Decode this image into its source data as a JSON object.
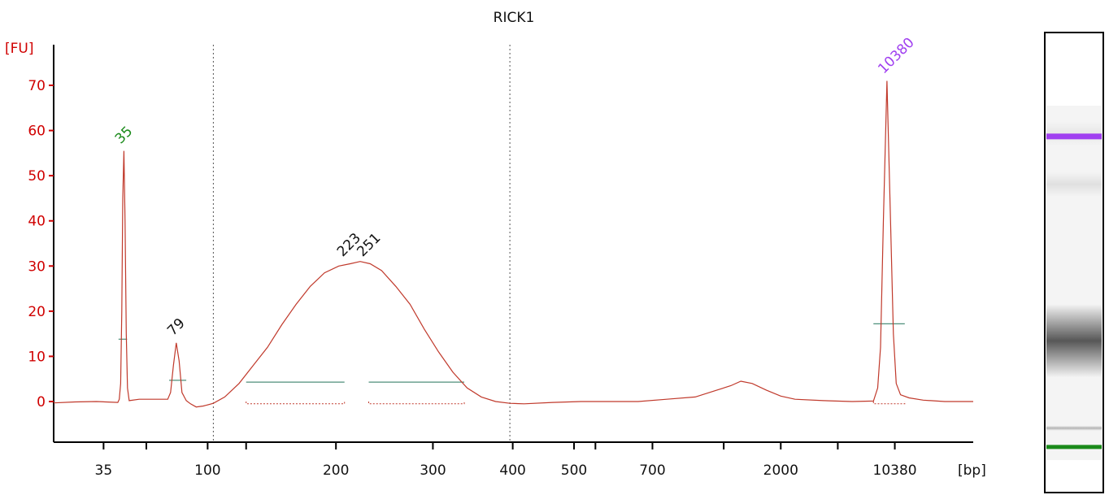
{
  "chart_data": {
    "type": "line",
    "title": "RICK1",
    "ylabel": "[FU]",
    "xlabel": "[bp]",
    "ylim": [
      -9,
      79
    ],
    "yticks": [
      0,
      10,
      20,
      30,
      40,
      50,
      60,
      70
    ],
    "ytick_labels": [
      "0",
      "10",
      "20",
      "30",
      "40",
      "50",
      "60",
      "70"
    ],
    "x_tick_labels": [
      {
        "label": "35",
        "time": 35
      },
      {
        "label": "100",
        "time": 108
      },
      {
        "label": "200",
        "time": 198
      },
      {
        "label": "300",
        "time": 266
      },
      {
        "label": "400",
        "time": 322
      },
      {
        "label": "500",
        "time": 365
      },
      {
        "label": "700",
        "time": 420
      },
      {
        "label": "2000",
        "time": 510
      },
      {
        "label": "10380",
        "time": 590
      }
    ],
    "x_minor_ticks": [
      65,
      135,
      380,
      470,
      550
    ],
    "x_range": [
      0,
      645
    ],
    "grid": false,
    "vertical_markers": [
      112,
      320
    ],
    "colors": {
      "trace": "#c0392b",
      "axis_labels": "#d00000",
      "lower_marker": "#1a8a1a",
      "upper_marker": "#a040f0",
      "region_line": "#4f8f7a"
    },
    "series": [
      {
        "values": [
          [
            0,
            -0.3
          ],
          [
            15,
            -0.1
          ],
          [
            30,
            0.0
          ],
          [
            45,
            -0.2
          ],
          [
            46,
            0.5
          ],
          [
            47,
            4.0
          ],
          [
            47.8,
            20.0
          ],
          [
            48.5,
            45.0
          ],
          [
            49.3,
            55.5
          ],
          [
            50.1,
            40.0
          ],
          [
            50.9,
            15.0
          ],
          [
            51.8,
            3.0
          ],
          [
            53,
            0.2
          ],
          [
            60,
            0.5
          ],
          [
            75,
            0.5
          ],
          [
            80,
            0.5
          ],
          [
            82,
            2.0
          ],
          [
            84,
            8.0
          ],
          [
            86,
            13.0
          ],
          [
            88,
            9.0
          ],
          [
            90,
            2.0
          ],
          [
            93,
            0.2
          ],
          [
            96,
            -0.5
          ],
          [
            100,
            -1.2
          ],
          [
            105,
            -1.0
          ],
          [
            112,
            -0.4
          ],
          [
            120,
            1.0
          ],
          [
            130,
            4.0
          ],
          [
            140,
            8.0
          ],
          [
            150,
            12.0
          ],
          [
            160,
            17.0
          ],
          [
            170,
            21.5
          ],
          [
            180,
            25.5
          ],
          [
            190,
            28.5
          ],
          [
            200,
            30.0
          ],
          [
            208,
            30.5
          ],
          [
            215,
            31.0
          ],
          [
            222,
            30.5
          ],
          [
            230,
            29.0
          ],
          [
            240,
            25.5
          ],
          [
            250,
            21.5
          ],
          [
            260,
            16.0
          ],
          [
            270,
            11.0
          ],
          [
            280,
            6.5
          ],
          [
            290,
            3.0
          ],
          [
            300,
            1.0
          ],
          [
            310,
            0.0
          ],
          [
            320,
            -0.4
          ],
          [
            330,
            -0.5
          ],
          [
            350,
            -0.2
          ],
          [
            370,
            0.0
          ],
          [
            390,
            0.0
          ],
          [
            410,
            0.0
          ],
          [
            430,
            0.5
          ],
          [
            450,
            1.0
          ],
          [
            465,
            2.5
          ],
          [
            475,
            3.5
          ],
          [
            482,
            4.5
          ],
          [
            490,
            4.0
          ],
          [
            500,
            2.5
          ],
          [
            510,
            1.2
          ],
          [
            520,
            0.5
          ],
          [
            540,
            0.2
          ],
          [
            560,
            0.0
          ],
          [
            575,
            0.1
          ],
          [
            578,
            3.0
          ],
          [
            580,
            12.0
          ],
          [
            582,
            40.0
          ],
          [
            584.5,
            71.0
          ],
          [
            587,
            40.0
          ],
          [
            589,
            15.0
          ],
          [
            591,
            4.0
          ],
          [
            594,
            1.5
          ],
          [
            600,
            0.8
          ],
          [
            610,
            0.3
          ],
          [
            625,
            0.0
          ],
          [
            645,
            0.0
          ]
        ]
      }
    ],
    "peaks": [
      {
        "label": "35",
        "time": 49.3,
        "fu": 55.5,
        "color": "#1a8a1a"
      },
      {
        "label": "79",
        "time": 86,
        "fu": 13.0,
        "color": "#111111"
      },
      {
        "label": "223",
        "time": 205,
        "fu": 30.5,
        "color": "#111111"
      },
      {
        "label": "251",
        "time": 219,
        "fu": 30.5,
        "color": "#111111"
      },
      {
        "label": "10380",
        "time": 584.5,
        "fu": 71.0,
        "color": "#a040f0"
      }
    ],
    "regions": [
      {
        "from": 45.5,
        "to": 51.5,
        "level": 13.8,
        "dashed_base": false
      },
      {
        "from": 81,
        "to": 93,
        "level": 4.7,
        "dashed_base": false
      },
      {
        "from": 135,
        "to": 204,
        "level": 4.3,
        "dashed_base": true
      },
      {
        "from": 221,
        "to": 288,
        "level": 4.3,
        "dashed_base": true
      },
      {
        "from": 575,
        "to": 597,
        "level": 17.2,
        "dashed_base": true
      }
    ]
  },
  "gel": {
    "bands": [
      {
        "pos": 0.22,
        "intensity": 0.08,
        "kind": "smear-faint"
      },
      {
        "pos": 0.33,
        "intensity": 0.1,
        "kind": "faint"
      },
      {
        "pos": 0.67,
        "intensity": 0.55,
        "kind": "smear"
      },
      {
        "pos": 0.86,
        "intensity": 0.25,
        "kind": "faint-line"
      }
    ],
    "upper_marker_pos": 0.225,
    "lower_marker_pos": 0.9,
    "upper_marker_color": "#a040f0",
    "lower_marker_color": "#1a8a1a"
  }
}
